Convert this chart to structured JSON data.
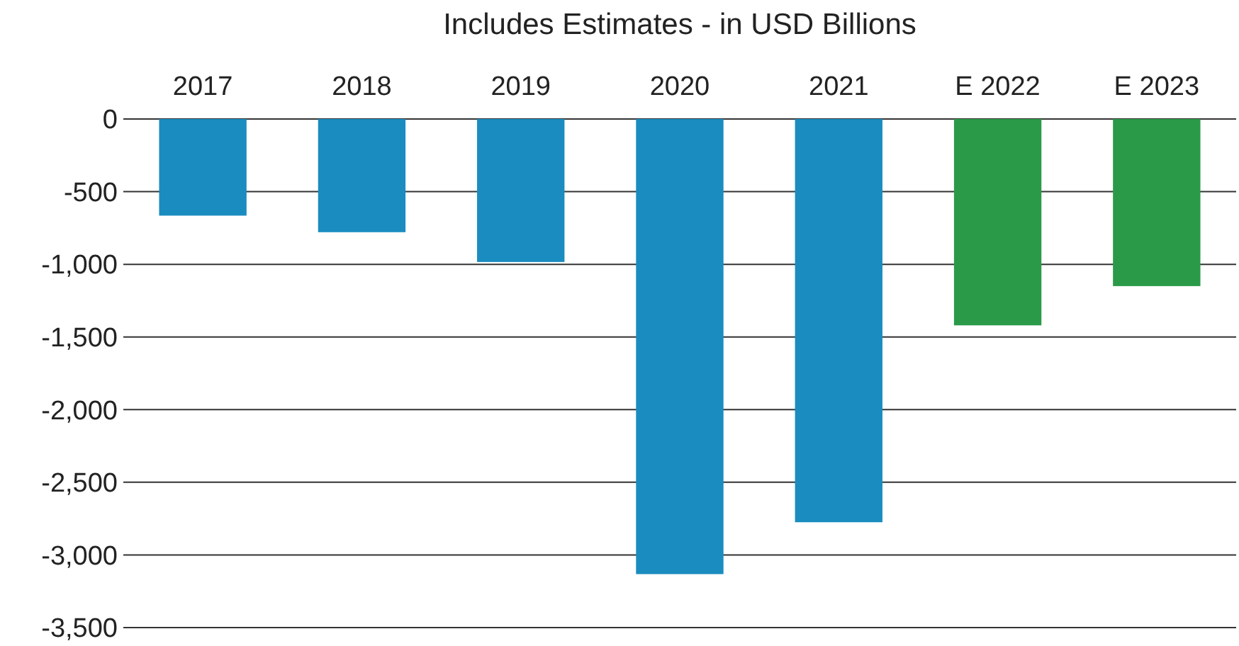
{
  "chart_data": {
    "type": "bar",
    "title": "Includes Estimates - in USD Billions",
    "categories": [
      "2017",
      "2018",
      "2019",
      "2020",
      "2021",
      "E 2022",
      "E 2023"
    ],
    "values": [
      -665,
      -779,
      -984,
      -3132,
      -2775,
      -1420,
      -1150
    ],
    "colors": [
      "#1a8cc0",
      "#1a8cc0",
      "#1a8cc0",
      "#1a8cc0",
      "#1a8cc0",
      "#2a9a48",
      "#2a9a48"
    ],
    "ylim": [
      -3500,
      0
    ],
    "yticks": [
      {
        "value": -3500,
        "label": "-3,500"
      },
      {
        "value": -3000,
        "label": "-3,000"
      },
      {
        "value": -2500,
        "label": "-2,500"
      },
      {
        "value": -2000,
        "label": "-2,000"
      },
      {
        "value": -1500,
        "label": "-1,500"
      },
      {
        "value": -1000,
        "label": "-1,000"
      },
      {
        "value": -500,
        "label": "-500"
      },
      0
    ],
    "grid": "y"
  }
}
